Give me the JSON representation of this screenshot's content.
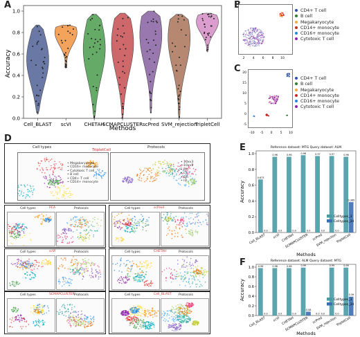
{
  "panels": {
    "A": "A",
    "B": "B",
    "C": "C",
    "D": "D",
    "E": "E",
    "F": "F"
  },
  "violin": {
    "ylabel": "Accuracy",
    "xlabel": "Methods",
    "yticks": [
      "0.0",
      "0.2",
      "0.4",
      "0.6",
      "0.8",
      "1.0"
    ],
    "methods": [
      "Cell_BLAST",
      "scVI",
      "CHETAH",
      "SCMAPCLUSTER",
      "scPred",
      "SVM_rejection",
      "TripletCell"
    ]
  },
  "legend_B": {
    "items": [
      {
        "label": "CD4+ T cell",
        "color": "#2a4fa8"
      },
      {
        "label": "B cell",
        "color": "#2e7d32"
      },
      {
        "label": "Megakaryocyte",
        "color": "#f4a742"
      },
      {
        "label": "CD14+ monocyte",
        "color": "#c62828"
      },
      {
        "label": "CD16+ monocyte",
        "color": "#1e88e5"
      },
      {
        "label": "Cytotoxic T cell",
        "color": "#8e24aa"
      }
    ],
    "xticks": [
      "2",
      "4",
      "6",
      "8",
      "10"
    ]
  },
  "legend_C": {
    "items": [
      {
        "label": "CD4+ T cell",
        "color": "#2a4fa8"
      },
      {
        "label": "B cell",
        "color": "#2e7d32"
      },
      {
        "label": "Megakaryocyte",
        "color": "#f4a742"
      },
      {
        "label": "CD14+ monocyte",
        "color": "#c62828"
      },
      {
        "label": "CD16+ monocyte",
        "color": "#1e88e5"
      },
      {
        "label": "Cytotoxic T cell",
        "color": "#8e24aa"
      }
    ],
    "xticks": [
      "-10",
      "-5",
      "0",
      "5",
      "10"
    ],
    "yticks": [
      "20",
      "15",
      "10",
      "5",
      "0",
      "-5"
    ]
  },
  "panel_D": {
    "top": {
      "left_title": "Cell types",
      "method": "TripletCell",
      "right_title": "Protocols",
      "celltypes": [
        "Megakaryocyte",
        "CD16+ monocyte",
        "Cytotoxic T cell",
        "B cell",
        "CD4+ T cell",
        "CD14+ monocyte"
      ],
      "protocols": [
        "10xv3",
        "10xv2",
        "Drl",
        "CL",
        "DR",
        "iD"
      ]
    },
    "grid": [
      {
        "left": "Cell types",
        "method": "PCA",
        "right": "Protocols"
      },
      {
        "left": "Cell types",
        "method": "scPred",
        "right": "Protocols"
      },
      {
        "left": "Cell types",
        "method": "scVI",
        "right": "Protocols"
      },
      {
        "left": "Cell types",
        "method": "CHETAH",
        "right": "Protocols"
      },
      {
        "left": "Cell types",
        "method": "SCMAPCLUSTER",
        "right": "Protocols"
      },
      {
        "left": "Cell types",
        "method": "Cell_BLAST",
        "right": "Protocols"
      }
    ]
  },
  "chart_data": [
    {
      "type": "bar",
      "title": "Reference dataset: MTG Query dataset: ALM",
      "xlabel": "Methods",
      "ylabel": "Accuracy",
      "ylim": [
        0,
        1.0
      ],
      "categories": [
        "Cell_BLAST",
        "scVI",
        "CHETAH",
        "SCMAPCLUSTER",
        "scPred",
        "SVM_rejection",
        "TripletCell"
      ],
      "series": [
        {
          "name": "Celltypes_3",
          "values": [
            0.673,
            0.96,
            0.96,
            0.98,
            0.97,
            0.97,
            0.96
          ]
        },
        {
          "name": "Celltypes_34",
          "values": [
            0.0,
            0.0,
            0.0,
            0.0,
            0.0,
            0.0,
            0.385
          ]
        }
      ],
      "data_labels": {
        "Celltypes_3": [
          "0.673",
          "0.96",
          "0.96",
          "0.98",
          "0.97",
          "0.97",
          "0.96"
        ],
        "Celltypes_34": [
          "0.0",
          "0.0",
          "0.0",
          "0.0",
          "0.0",
          "0.0",
          "0.385"
        ]
      },
      "yticks": [
        "0.0",
        "0.2",
        "0.4",
        "0.6",
        "0.8",
        "1.0"
      ]
    },
    {
      "type": "bar",
      "title": "Reference dataset: ALM Query dataset: MTG",
      "xlabel": "Methods",
      "ylabel": "Accuracy",
      "ylim": [
        0,
        1.0
      ],
      "categories": [
        "Cell_BLAST",
        "scVI",
        "CHETAH",
        "SCMAPCLUSTER",
        "scPred",
        "SVM_rejection",
        "TripletCell"
      ],
      "series": [
        {
          "name": "Celltypes_3",
          "values": [
            0.98,
            0.98,
            0.98,
            0.99,
            0.0,
            0.99,
            0.99
          ]
        },
        {
          "name": "Celltypes_34",
          "values": [
            0.0,
            0.0,
            0.0,
            0.08,
            0.0,
            0.0,
            0.39
          ]
        }
      ],
      "data_labels": {
        "Celltypes_3": [
          "0.98",
          "0.98",
          "0.98",
          "0.99",
          "0.0",
          "0.99",
          "0.99"
        ],
        "Celltypes_34": [
          "0.0",
          "0.0",
          "0.0",
          "0.08",
          "0.0",
          "0.0",
          "0.39"
        ]
      },
      "yticks": [
        "0.0",
        "0.2",
        "0.4",
        "0.6",
        "0.8",
        "1.0"
      ]
    }
  ]
}
